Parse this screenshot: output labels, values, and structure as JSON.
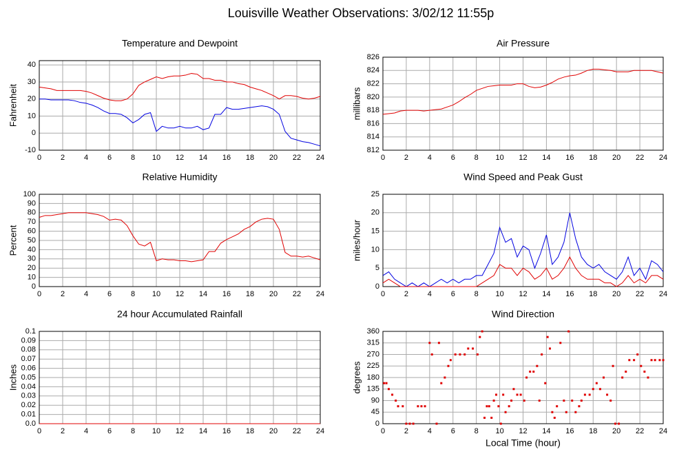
{
  "title": "Louisville Weather Observations: 3/02/12 11:55p",
  "chart_data": [
    {
      "type": "line",
      "title": "Temperature and Dewpoint",
      "ylabel": "Fahrenheit",
      "grid": true,
      "xlim": [
        0,
        24
      ],
      "xticks": [
        0,
        2,
        4,
        6,
        8,
        10,
        12,
        14,
        16,
        18,
        20,
        22,
        24
      ],
      "ylim": [
        -10,
        42.5
      ],
      "yticks": [
        -10,
        0,
        10,
        20,
        30,
        40
      ],
      "x": [
        0,
        0.5,
        1,
        1.5,
        2,
        2.5,
        3,
        3.5,
        4,
        4.5,
        5,
        5.5,
        6,
        6.5,
        7,
        7.5,
        8,
        8.5,
        9,
        9.5,
        10,
        10.5,
        11,
        11.5,
        12,
        12.5,
        13,
        13.5,
        14,
        14.5,
        15,
        15.5,
        16,
        16.5,
        17,
        17.5,
        18,
        18.5,
        19,
        19.5,
        20,
        20.5,
        21,
        21.5,
        22,
        22.5,
        23,
        23.5,
        24
      ],
      "series": [
        {
          "color": "#e00000",
          "values": [
            27,
            26.5,
            26,
            25,
            25,
            25,
            25,
            25,
            24.5,
            23.5,
            22,
            20.5,
            19.5,
            19,
            19,
            20,
            23,
            28,
            30,
            31.5,
            33,
            32,
            33,
            33.5,
            33.5,
            34,
            35,
            34.5,
            32,
            32,
            31,
            31,
            30,
            30,
            29,
            28.5,
            27,
            26,
            25,
            23.5,
            22,
            20,
            22,
            22,
            21.5,
            20.5,
            20,
            20.5,
            21.5
          ]
        },
        {
          "color": "#0000e0",
          "values": [
            20,
            20,
            19.5,
            19.5,
            19.5,
            19.5,
            19,
            18,
            17.5,
            16.5,
            15,
            13,
            11.5,
            11.5,
            11,
            9,
            6,
            8,
            11,
            12,
            1,
            4,
            3,
            3,
            4,
            3,
            3,
            4,
            2,
            3,
            11,
            11,
            15,
            14,
            14,
            14.5,
            15,
            15.5,
            16,
            15.5,
            14,
            11,
            1,
            -3,
            -4,
            -5,
            -5.5,
            -6.5,
            -7.5
          ]
        }
      ]
    },
    {
      "type": "line",
      "title": "Air Pressure",
      "ylabel": "millibars",
      "grid": true,
      "xlim": [
        0,
        24
      ],
      "xticks": [
        0,
        2,
        4,
        6,
        8,
        10,
        12,
        14,
        16,
        18,
        20,
        22,
        24
      ],
      "ylim": [
        812,
        826
      ],
      "yticks": [
        812,
        814,
        816,
        818,
        820,
        822,
        824,
        826
      ],
      "x": [
        0,
        0.5,
        1,
        1.5,
        2,
        2.5,
        3,
        3.5,
        4,
        4.5,
        5,
        5.5,
        6,
        6.5,
        7,
        7.5,
        8,
        8.5,
        9,
        9.5,
        10,
        10.5,
        11,
        11.5,
        12,
        12.5,
        13,
        13.5,
        14,
        14.5,
        15,
        15.5,
        16,
        16.5,
        17,
        17.5,
        18,
        18.5,
        19,
        19.5,
        20,
        20.5,
        21,
        21.5,
        22,
        22.5,
        23,
        23.5,
        24
      ],
      "series": [
        {
          "color": "#e00000",
          "values": [
            817.4,
            817.5,
            817.6,
            817.9,
            818,
            818,
            818,
            817.9,
            818,
            818.1,
            818.2,
            818.5,
            818.8,
            819.3,
            819.9,
            820.4,
            821,
            821.3,
            821.6,
            821.7,
            821.8,
            821.8,
            821.8,
            822,
            822,
            821.6,
            821.4,
            821.5,
            821.8,
            822.2,
            822.7,
            823,
            823.2,
            823.3,
            823.6,
            824,
            824.2,
            824.2,
            824.1,
            824,
            823.8,
            823.8,
            823.8,
            824,
            824,
            824,
            824,
            823.8,
            823.6
          ]
        }
      ]
    },
    {
      "type": "line",
      "title": "Relative Humidity",
      "ylabel": "Percent",
      "grid": true,
      "xlim": [
        0,
        24
      ],
      "xticks": [
        0,
        2,
        4,
        6,
        8,
        10,
        12,
        14,
        16,
        18,
        20,
        22,
        24
      ],
      "ylim": [
        0,
        100
      ],
      "yticks": [
        0,
        10,
        20,
        30,
        40,
        50,
        60,
        70,
        80,
        90,
        100
      ],
      "x": [
        0,
        0.5,
        1,
        1.5,
        2,
        2.5,
        3,
        3.5,
        4,
        4.5,
        5,
        5.5,
        6,
        6.5,
        7,
        7.5,
        8,
        8.5,
        9,
        9.5,
        10,
        10.5,
        11,
        11.5,
        12,
        12.5,
        13,
        13.5,
        14,
        14.5,
        15,
        15.5,
        16,
        16.5,
        17,
        17.5,
        18,
        18.5,
        19,
        19.5,
        20,
        20.5,
        21,
        21.5,
        22,
        22.5,
        23,
        23.5,
        24
      ],
      "series": [
        {
          "color": "#e00000",
          "values": [
            75,
            77,
            77,
            78,
            79,
            80,
            80,
            80,
            80,
            79,
            78,
            76,
            72,
            73,
            72,
            66,
            55,
            46,
            44,
            48,
            28,
            30,
            29,
            29,
            28,
            28,
            27,
            28,
            29,
            38,
            38,
            47,
            51,
            54,
            57,
            62,
            65,
            70,
            73,
            74,
            73,
            62,
            37,
            33,
            33,
            32,
            33,
            31,
            29
          ]
        }
      ]
    },
    {
      "type": "line",
      "title": "Wind Speed and Peak Gust",
      "ylabel": "miles/hour",
      "grid": true,
      "xlim": [
        0,
        24
      ],
      "xticks": [
        0,
        2,
        4,
        6,
        8,
        10,
        12,
        14,
        16,
        18,
        20,
        22,
        24
      ],
      "ylim": [
        0,
        25
      ],
      "yticks": [
        0,
        5,
        10,
        15,
        20,
        25
      ],
      "x": [
        0,
        0.5,
        1,
        1.5,
        2,
        2.5,
        3,
        3.5,
        4,
        4.5,
        5,
        5.5,
        6,
        6.5,
        7,
        7.5,
        8,
        8.5,
        9,
        9.5,
        10,
        10.5,
        11,
        11.5,
        12,
        12.5,
        13,
        13.5,
        14,
        14.5,
        15,
        15.5,
        16,
        16.5,
        17,
        17.5,
        18,
        18.5,
        19,
        19.5,
        20,
        20.5,
        21,
        21.5,
        22,
        22.5,
        23,
        23.5,
        24
      ],
      "series": [
        {
          "color": "#0000e0",
          "values": [
            3,
            4,
            2,
            1,
            0,
            1,
            0,
            1,
            0,
            1,
            2,
            1,
            2,
            1,
            2,
            2,
            3,
            3,
            6,
            9,
            16,
            12,
            13,
            8,
            11,
            10,
            5,
            9,
            14,
            6,
            8,
            12,
            20,
            13,
            8,
            6,
            5,
            6,
            4,
            3,
            2,
            4,
            8,
            3,
            5,
            2,
            7,
            6,
            4
          ]
        },
        {
          "color": "#e00000",
          "values": [
            1,
            2,
            1,
            0,
            0,
            0,
            0,
            0,
            0,
            0,
            0,
            0,
            0,
            0,
            0,
            0,
            0,
            1,
            2,
            3,
            6,
            5,
            5,
            3,
            5,
            4,
            2,
            3,
            5,
            2,
            3,
            5,
            8,
            5,
            3,
            2,
            2,
            2,
            1,
            1,
            0,
            1,
            3,
            1,
            2,
            1,
            3,
            3,
            2
          ]
        }
      ]
    },
    {
      "type": "line",
      "title": "24 hour Accumulated Rainfall",
      "ylabel": "Inches",
      "grid": true,
      "xlim": [
        0,
        24
      ],
      "xticks": [
        0,
        2,
        4,
        6,
        8,
        10,
        12,
        14,
        16,
        18,
        20,
        22,
        24
      ],
      "ylim": [
        0,
        0.1
      ],
      "yticks": [
        {
          "value": 0,
          "label": "0.0"
        },
        0.01,
        0.02,
        0.03,
        0.04,
        0.05,
        0.06,
        0.07,
        0.08,
        0.09,
        0.1
      ],
      "x": [
        0,
        24
      ],
      "series": [
        {
          "color": "#e00000",
          "values": [
            0,
            0
          ]
        }
      ]
    },
    {
      "type": "scatter",
      "title": "Wind Direction",
      "ylabel": "degrees",
      "xlabel": "Local Time (hour)",
      "grid": true,
      "xlim": [
        0,
        24
      ],
      "xticks": [
        0,
        2,
        4,
        6,
        8,
        10,
        12,
        14,
        16,
        18,
        20,
        22,
        24
      ],
      "ylim": [
        0,
        360
      ],
      "yticks": [
        0,
        45,
        90,
        135,
        180,
        225,
        270,
        315,
        360
      ],
      "color": "#e00000",
      "x": [
        0.1,
        0.3,
        0.5,
        0.8,
        1.1,
        1.3,
        1.7,
        2,
        2.3,
        2.6,
        3,
        3.3,
        3.6,
        4,
        4.2,
        4.6,
        4.8,
        5,
        5.3,
        5.6,
        5.8,
        6.2,
        6.6,
        7,
        7.3,
        7.7,
        8.1,
        8.3,
        8.5,
        8.7,
        8.9,
        9.1,
        9.3,
        9.5,
        9.7,
        9.9,
        10.1,
        10.3,
        10.5,
        10.8,
        11,
        11.2,
        11.5,
        11.8,
        12.1,
        12.3,
        12.6,
        12.9,
        13.2,
        13.4,
        13.6,
        13.9,
        14.1,
        14.3,
        14.5,
        14.7,
        14.9,
        15.2,
        15.5,
        15.7,
        15.9,
        16.2,
        16.5,
        16.8,
        17,
        17.3,
        17.7,
        18,
        18.3,
        18.6,
        18.9,
        19.2,
        19.5,
        19.7,
        19.9,
        20.2,
        20.5,
        20.8,
        21.1,
        21.5,
        21.8,
        22.1,
        22.4,
        22.7,
        23,
        23.3,
        23.7,
        24
      ],
      "values": [
        158,
        158,
        135,
        113,
        90,
        68,
        68,
        0,
        0,
        0,
        68,
        68,
        68,
        315,
        270,
        0,
        315,
        158,
        180,
        225,
        248,
        270,
        270,
        270,
        293,
        293,
        270,
        338,
        360,
        23,
        68,
        68,
        23,
        90,
        113,
        68,
        0,
        113,
        45,
        68,
        90,
        135,
        113,
        113,
        90,
        180,
        203,
        203,
        225,
        90,
        270,
        158,
        338,
        293,
        45,
        23,
        68,
        315,
        90,
        45,
        360,
        90,
        45,
        68,
        90,
        113,
        113,
        135,
        158,
        135,
        180,
        113,
        90,
        225,
        0,
        0,
        180,
        203,
        248,
        248,
        270,
        225,
        203,
        180,
        248,
        248,
        248,
        248
      ]
    }
  ]
}
